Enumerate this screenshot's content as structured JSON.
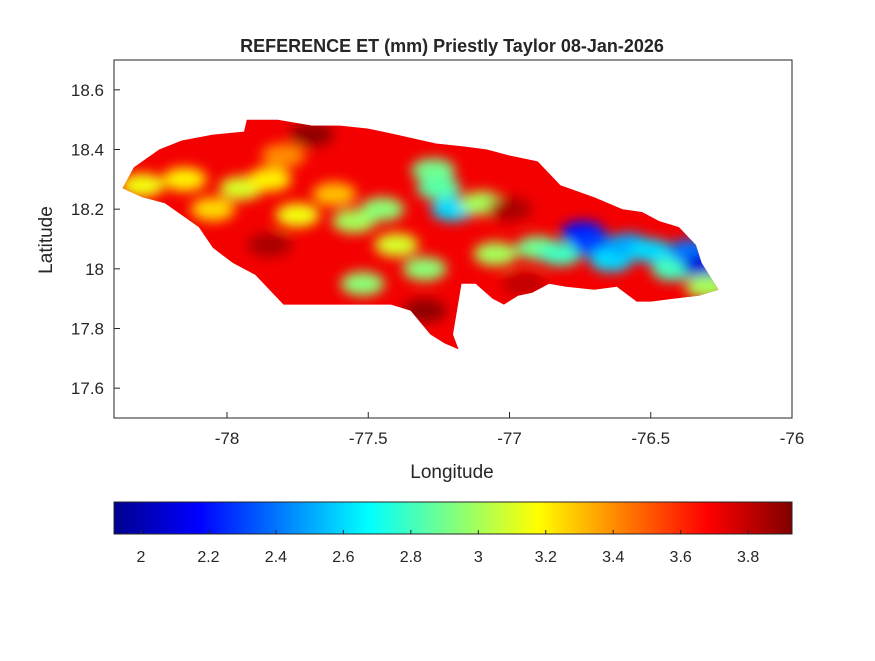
{
  "figure": {
    "title": "REFERENCE ET (mm) Priestly Taylor 08-Jan-2026"
  },
  "chart_data": {
    "type": "heatmap",
    "title": "REFERENCE ET (mm) Priestly Taylor 08-Jan-2026",
    "xlabel": "Longitude",
    "ylabel": "Latitude",
    "xlim": [
      -78.4,
      -76
    ],
    "ylim": [
      17.5,
      18.7
    ],
    "xticks": [
      -78,
      -77.5,
      -77,
      -76.5,
      -76
    ],
    "xtick_labels": [
      "-78",
      "-77.5",
      "-77",
      "-76.5",
      "-76"
    ],
    "yticks": [
      17.6,
      17.8,
      18,
      18.2,
      18.4,
      18.6
    ],
    "ytick_labels": [
      "17.6",
      "17.8",
      "18",
      "18.2",
      "18.4",
      "18.6"
    ],
    "grid": false,
    "colormap": "jet",
    "colorbar": {
      "orientation": "horizontal",
      "location": "bottom",
      "clim": [
        1.92,
        3.93
      ],
      "ticks": [
        2,
        2.2,
        2.4,
        2.6,
        2.8,
        3,
        3.2,
        3.4,
        3.6,
        3.8
      ],
      "tick_labels": [
        "2",
        "2.2",
        "2.4",
        "2.6",
        "2.8",
        "3",
        "3.2",
        "3.4",
        "3.6",
        "3.8"
      ]
    },
    "region_outline": [
      [
        -78.37,
        18.27
      ],
      [
        -78.33,
        18.34
      ],
      [
        -78.24,
        18.4
      ],
      [
        -78.16,
        18.43
      ],
      [
        -78.05,
        18.45
      ],
      [
        -77.94,
        18.46
      ],
      [
        -77.93,
        18.5
      ],
      [
        -77.82,
        18.5
      ],
      [
        -77.7,
        18.48
      ],
      [
        -77.6,
        18.48
      ],
      [
        -77.5,
        18.47
      ],
      [
        -77.4,
        18.45
      ],
      [
        -77.26,
        18.42
      ],
      [
        -77.16,
        18.41
      ],
      [
        -77.08,
        18.4
      ],
      [
        -77.0,
        18.38
      ],
      [
        -76.9,
        18.36
      ],
      [
        -76.82,
        18.28
      ],
      [
        -76.7,
        18.24
      ],
      [
        -76.6,
        18.2
      ],
      [
        -76.53,
        18.19
      ],
      [
        -76.47,
        18.16
      ],
      [
        -76.4,
        18.14
      ],
      [
        -76.34,
        18.08
      ],
      [
        -76.32,
        18.02
      ],
      [
        -76.26,
        17.93
      ],
      [
        -76.33,
        17.91
      ],
      [
        -76.42,
        17.9
      ],
      [
        -76.5,
        17.89
      ],
      [
        -76.55,
        17.89
      ],
      [
        -76.62,
        17.94
      ],
      [
        -76.7,
        17.93
      ],
      [
        -76.8,
        17.94
      ],
      [
        -76.86,
        17.95
      ],
      [
        -76.92,
        17.92
      ],
      [
        -76.97,
        17.91
      ],
      [
        -77.02,
        17.88
      ],
      [
        -77.06,
        17.9
      ],
      [
        -77.12,
        17.95
      ],
      [
        -77.17,
        17.95
      ],
      [
        -77.2,
        17.78
      ],
      [
        -77.18,
        17.73
      ],
      [
        -77.23,
        17.75
      ],
      [
        -77.28,
        17.78
      ],
      [
        -77.35,
        17.86
      ],
      [
        -77.42,
        17.88
      ],
      [
        -77.52,
        17.88
      ],
      [
        -77.62,
        17.88
      ],
      [
        -77.8,
        17.88
      ],
      [
        -77.85,
        17.93
      ],
      [
        -77.9,
        17.98
      ],
      [
        -77.98,
        18.02
      ],
      [
        -78.05,
        18.07
      ],
      [
        -78.1,
        18.14
      ],
      [
        -78.22,
        18.22
      ],
      [
        -78.3,
        18.24
      ],
      [
        -78.37,
        18.27
      ]
    ],
    "field_background_value": 3.7,
    "field_patches": [
      {
        "lon": -78.3,
        "lat": 18.28,
        "value": 3.15
      },
      {
        "lon": -78.15,
        "lat": 18.3,
        "value": 3.2
      },
      {
        "lon": -78.05,
        "lat": 18.2,
        "value": 3.25
      },
      {
        "lon": -77.95,
        "lat": 18.27,
        "value": 3.1
      },
      {
        "lon": -77.85,
        "lat": 18.3,
        "value": 3.2
      },
      {
        "lon": -77.8,
        "lat": 18.38,
        "value": 3.4
      },
      {
        "lon": -77.75,
        "lat": 18.18,
        "value": 3.15
      },
      {
        "lon": -77.62,
        "lat": 18.25,
        "value": 3.3
      },
      {
        "lon": -77.55,
        "lat": 18.16,
        "value": 3.0
      },
      {
        "lon": -77.45,
        "lat": 18.2,
        "value": 2.95
      },
      {
        "lon": -77.4,
        "lat": 18.08,
        "value": 3.1
      },
      {
        "lon": -77.52,
        "lat": 17.95,
        "value": 2.95
      },
      {
        "lon": -77.27,
        "lat": 18.33,
        "value": 2.9
      },
      {
        "lon": -77.25,
        "lat": 18.27,
        "value": 2.85
      },
      {
        "lon": -77.2,
        "lat": 18.2,
        "value": 2.6
      },
      {
        "lon": -77.1,
        "lat": 18.22,
        "value": 3.0
      },
      {
        "lon": -77.3,
        "lat": 18.0,
        "value": 2.95
      },
      {
        "lon": -77.05,
        "lat": 18.05,
        "value": 3.0
      },
      {
        "lon": -76.9,
        "lat": 18.07,
        "value": 2.9
      },
      {
        "lon": -76.82,
        "lat": 18.05,
        "value": 2.8
      },
      {
        "lon": -76.74,
        "lat": 18.12,
        "value": 2.2
      },
      {
        "lon": -76.7,
        "lat": 18.08,
        "value": 2.3
      },
      {
        "lon": -76.64,
        "lat": 18.03,
        "value": 2.6
      },
      {
        "lon": -76.58,
        "lat": 18.08,
        "value": 2.5
      },
      {
        "lon": -76.5,
        "lat": 18.06,
        "value": 2.6
      },
      {
        "lon": -76.42,
        "lat": 18.0,
        "value": 2.8
      },
      {
        "lon": -76.36,
        "lat": 18.06,
        "value": 2.4
      },
      {
        "lon": -76.31,
        "lat": 18.01,
        "value": 2.1
      },
      {
        "lon": -76.3,
        "lat": 17.94,
        "value": 3.0
      },
      {
        "lon": -77.3,
        "lat": 17.86,
        "value": 3.9
      },
      {
        "lon": -77.0,
        "lat": 18.2,
        "value": 3.85
      },
      {
        "lon": -77.7,
        "lat": 18.45,
        "value": 3.9
      },
      {
        "lon": -77.85,
        "lat": 18.08,
        "value": 3.85
      },
      {
        "lon": -76.95,
        "lat": 17.95,
        "value": 3.8
      }
    ]
  },
  "colors": {
    "axis_line": "#262626",
    "background": "#ffffff"
  }
}
